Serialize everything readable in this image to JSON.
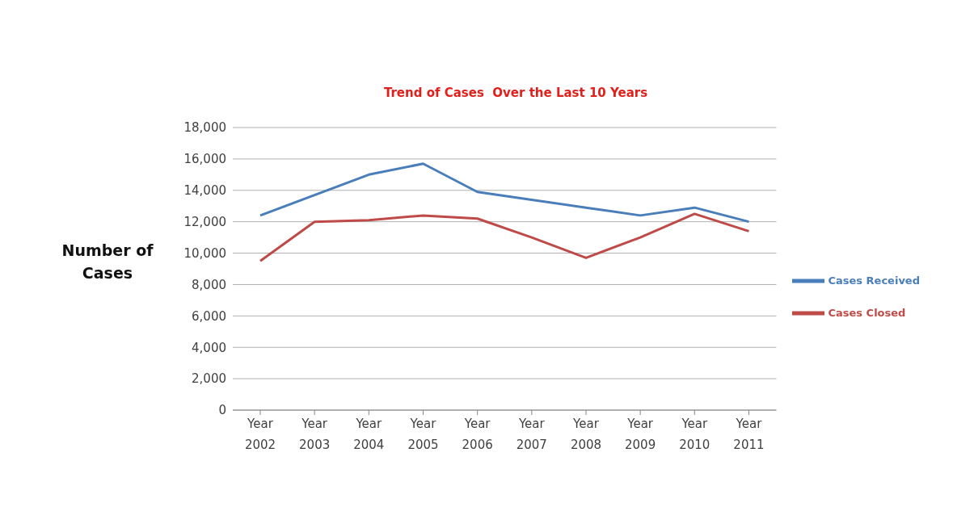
{
  "chart_data": {
    "type": "line",
    "title": "Trend of Cases  Over the Last 10 Years",
    "ylabel": "Number of Cases",
    "categories": [
      "Year 2002",
      "Year 2003",
      "Year 2004",
      "Year 2005",
      "Year 2006",
      "Year 2007",
      "Year 2008",
      "Year 2009",
      "Year 2010",
      "Year 2011"
    ],
    "series": [
      {
        "name": "Cases Received",
        "color": "#4a7ebb",
        "values": [
          12400,
          13700,
          15000,
          15700,
          13900,
          13400,
          12900,
          12400,
          12900,
          12000
        ]
      },
      {
        "name": "Cases Closed",
        "color": "#be4b48",
        "values": [
          9500,
          12000,
          12100,
          12400,
          12200,
          11000,
          9700,
          11000,
          12500,
          11400
        ]
      }
    ],
    "ylim": [
      0,
      18000
    ],
    "yticks": [
      0,
      {
        "value": 2000,
        "label": "2,000"
      },
      {
        "value": 4000,
        "label": "4,000"
      },
      {
        "value": 6000,
        "label": "6,000"
      },
      {
        "value": 8000,
        "label": "8,000"
      },
      {
        "value": 10000,
        "label": "10,000"
      },
      {
        "value": 12000,
        "label": "12,000"
      },
      {
        "value": 14000,
        "label": "14,000"
      },
      {
        "value": 16000,
        "label": "16,000"
      },
      {
        "value": 18000,
        "label": "18,000"
      }
    ],
    "grid": "y",
    "legend": "right",
    "marker": "none",
    "line_style": "solid"
  }
}
